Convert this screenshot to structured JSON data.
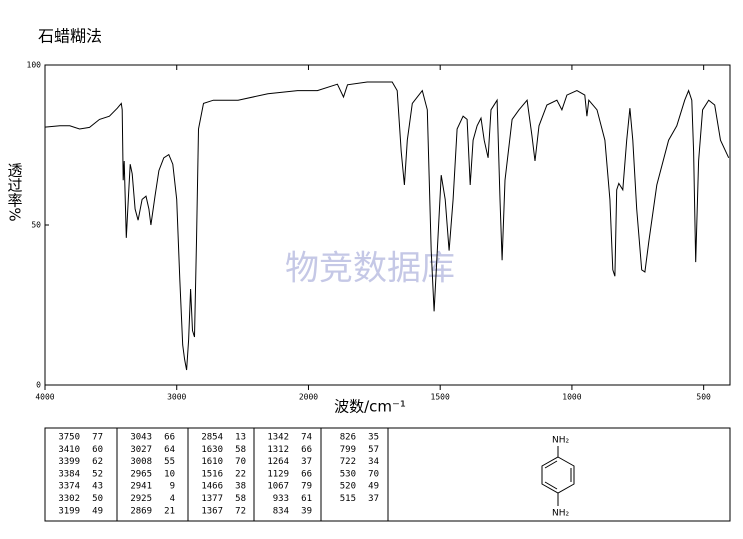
{
  "chart_data": {
    "type": "line",
    "title": "石蜡糊法",
    "x_label": "波数/cm⁻¹",
    "y_label": "透过率%",
    "watermark": "物竞数据库",
    "xscale": "piecewise",
    "xlim": [
      4000,
      400
    ],
    "xticks": [
      4000,
      3000,
      2000,
      1500,
      1000,
      500
    ],
    "ylim": [
      0,
      100
    ],
    "yticks": [
      0,
      50,
      100
    ],
    "color": "#000000",
    "x": [
      4000,
      3887,
      3812,
      3737,
      3662,
      3586,
      3511,
      3451,
      3421,
      3414,
      3406,
      3399,
      3383,
      3368,
      3353,
      3338,
      3316,
      3293,
      3263,
      3233,
      3211,
      3196,
      3165,
      3135,
      3098,
      3060,
      3030,
      3000,
      2977,
      2955,
      2940,
      2925,
      2910,
      2895,
      2880,
      2865,
      2850,
      2835,
      2797,
      2722,
      2534,
      2308,
      2083,
      1966,
      1890,
      1867,
      1852,
      1777,
      1682,
      1663,
      1648,
      1636,
      1625,
      1606,
      1568,
      1549,
      1534,
      1523,
      1511,
      1496,
      1481,
      1466,
      1451,
      1436,
      1413,
      1398,
      1386,
      1375,
      1360,
      1345,
      1333,
      1318,
      1307,
      1284,
      1273,
      1265,
      1254,
      1227,
      1201,
      1170,
      1152,
      1140,
      1125,
      1095,
      1057,
      1038,
      1019,
      981,
      951,
      943,
      936,
      905,
      875,
      856,
      845,
      837,
      830,
      822,
      807,
      792,
      780,
      769,
      754,
      735,
      723,
      708,
      678,
      633,
      602,
      572,
      557,
      545,
      538,
      530,
      519,
      504,
      481,
      458,
      436,
      405
    ],
    "values": [
      80.6,
      81,
      81,
      80,
      80.5,
      83,
      84,
      86.5,
      88,
      86,
      64,
      70,
      46,
      58,
      69,
      66,
      55,
      51.5,
      58,
      59,
      55,
      50,
      59,
      67,
      71,
      72,
      69,
      58,
      33,
      12.5,
      8,
      4.7,
      14,
      30,
      17,
      15,
      45,
      80,
      88,
      89,
      89,
      91,
      92,
      92,
      94,
      90,
      93.8,
      94.7,
      94.7,
      92,
      73,
      62.5,
      76.5,
      88,
      92,
      86,
      42,
      23,
      42,
      65.6,
      58,
      42,
      58,
      80,
      84,
      83,
      62.5,
      76.5,
      81,
      83.4,
      76.5,
      71,
      86,
      89,
      58,
      39,
      64,
      83,
      86,
      89,
      78,
      70,
      81,
      87.5,
      89,
      86,
      90.6,
      92,
      90.6,
      84,
      89,
      86,
      76.5,
      58,
      36,
      34,
      61,
      63,
      61,
      76.5,
      86.5,
      76.5,
      55,
      36,
      35.3,
      45,
      62.5,
      76.5,
      81,
      89,
      92,
      89,
      73,
      38.4,
      70,
      86,
      89,
      87.5,
      76.5,
      71
    ]
  },
  "table": {
    "columns": [
      [
        [
          3750,
          77
        ],
        [
          3410,
          60
        ],
        [
          3399,
          62
        ],
        [
          3384,
          52
        ],
        [
          3374,
          43
        ],
        [
          3302,
          50
        ],
        [
          3199,
          49
        ]
      ],
      [
        [
          3043,
          66
        ],
        [
          3027,
          64
        ],
        [
          3008,
          55
        ],
        [
          2965,
          10
        ],
        [
          2941,
          9
        ],
        [
          2925,
          4
        ],
        [
          2869,
          21
        ]
      ],
      [
        [
          2854,
          13
        ],
        [
          1630,
          58
        ],
        [
          1610,
          70
        ],
        [
          1516,
          22
        ],
        [
          1466,
          38
        ],
        [
          1377,
          58
        ],
        [
          1367,
          72
        ]
      ],
      [
        [
          1342,
          74
        ],
        [
          1312,
          66
        ],
        [
          1264,
          37
        ],
        [
          1129,
          66
        ],
        [
          1067,
          79
        ],
        [
          933,
          61
        ],
        [
          834,
          39
        ]
      ],
      [
        [
          826,
          35
        ],
        [
          799,
          57
        ],
        [
          722,
          34
        ],
        [
          530,
          70
        ],
        [
          520,
          49
        ],
        [
          515,
          37
        ]
      ]
    ]
  },
  "structure": {
    "top_group": "NH₂",
    "bottom_group": "NH₂"
  }
}
